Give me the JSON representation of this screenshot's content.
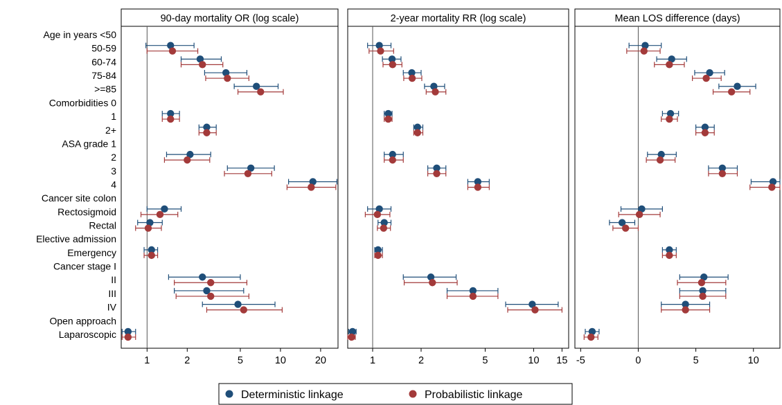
{
  "chart_data": {
    "type": "forest",
    "legend_position": "bottom",
    "series": [
      {
        "name": "Deterministic linkage",
        "color": "#1f4e79"
      },
      {
        "name": "Probabilistic linkage",
        "color": "#a33a3a"
      }
    ],
    "row_labels": [
      "Age in years <50",
      "50-59",
      "60-74",
      "75-84",
      ">=85",
      "Comorbidities 0",
      "1",
      "2+",
      "ASA grade 1",
      "2",
      "3",
      "4",
      "Cancer site colon",
      "Rectosigmoid",
      "Rectal",
      "Elective admission",
      "Emergency",
      "Cancer stage I",
      "II",
      "III",
      "IV",
      "Open approach",
      "Laparoscopic"
    ],
    "panels": [
      {
        "title": "90-day mortality OR (log scale)",
        "scale": "log",
        "reference_line": 1,
        "xlim": [
          0.64,
          27
        ],
        "ticks": [
          1,
          2,
          5,
          10,
          20
        ],
        "tick_labels": [
          "1",
          "2",
          "5",
          "10",
          "20"
        ],
        "rows": [
          null,
          [
            [
              1.5,
              0.98,
              2.25
            ],
            [
              1.55,
              1.0,
              2.4
            ]
          ],
          [
            [
              2.5,
              1.8,
              3.6
            ],
            [
              2.6,
              1.8,
              3.7
            ]
          ],
          [
            [
              3.9,
              2.7,
              5.6
            ],
            [
              4.0,
              2.75,
              5.8
            ]
          ],
          [
            [
              6.6,
              4.5,
              9.6
            ],
            [
              7.1,
              4.8,
              10.5
            ]
          ],
          null,
          [
            [
              1.5,
              1.3,
              1.75
            ],
            [
              1.5,
              1.3,
              1.75
            ]
          ],
          [
            [
              2.8,
              2.45,
              3.3
            ],
            [
              2.8,
              2.45,
              3.3
            ]
          ],
          null,
          [
            [
              2.1,
              1.4,
              3.0
            ],
            [
              2.0,
              1.35,
              2.95
            ]
          ],
          [
            [
              6.0,
              4.0,
              9.0
            ],
            [
              5.7,
              3.8,
              8.6
            ]
          ],
          [
            [
              17.5,
              11.5,
              26.5
            ],
            [
              17.0,
              11.2,
              26.0
            ]
          ],
          null,
          [
            [
              1.35,
              1.0,
              1.8
            ],
            [
              1.25,
              0.9,
              1.7
            ]
          ],
          [
            [
              1.05,
              0.85,
              1.3
            ],
            [
              1.02,
              0.82,
              1.28
            ]
          ],
          null,
          [
            [
              1.08,
              0.95,
              1.2
            ],
            [
              1.08,
              0.95,
              1.2
            ]
          ],
          null,
          [
            [
              2.6,
              1.45,
              5.0
            ],
            [
              3.0,
              1.6,
              5.6
            ]
          ],
          [
            [
              2.8,
              1.6,
              5.3
            ],
            [
              3.0,
              1.65,
              5.8
            ]
          ],
          [
            [
              4.8,
              2.6,
              9.1
            ],
            [
              5.3,
              2.8,
              10.3
            ]
          ],
          null,
          [
            [
              0.72,
              0.65,
              0.82
            ],
            [
              0.72,
              0.65,
              0.82
            ]
          ]
        ]
      },
      {
        "title": "2-year mortality RR (log scale)",
        "scale": "log",
        "reference_line": 1,
        "xlim": [
          0.7,
          16.5
        ],
        "ticks": [
          1,
          2,
          5,
          10,
          15
        ],
        "tick_labels": [
          "1",
          "2",
          "5",
          "10",
          "15"
        ],
        "rows": [
          null,
          [
            [
              1.1,
              0.93,
              1.3
            ],
            [
              1.12,
              0.95,
              1.35
            ]
          ],
          [
            [
              1.32,
              1.15,
              1.5
            ],
            [
              1.33,
              1.16,
              1.52
            ]
          ],
          [
            [
              1.75,
              1.55,
              2.0
            ],
            [
              1.76,
              1.56,
              2.02
            ]
          ],
          [
            [
              2.4,
              2.1,
              2.8
            ],
            [
              2.45,
              2.15,
              2.85
            ]
          ],
          null,
          [
            [
              1.25,
              1.18,
              1.32
            ],
            [
              1.25,
              1.18,
              1.32
            ]
          ],
          [
            [
              1.9,
              1.8,
              2.05
            ],
            [
              1.9,
              1.8,
              2.05
            ]
          ],
          null,
          [
            [
              1.33,
              1.18,
              1.55
            ],
            [
              1.33,
              1.18,
              1.55
            ]
          ],
          [
            [
              2.5,
              2.2,
              2.85
            ],
            [
              2.5,
              2.2,
              2.85
            ]
          ],
          [
            [
              4.5,
              3.9,
              5.3
            ],
            [
              4.5,
              3.9,
              5.3
            ]
          ],
          null,
          [
            [
              1.1,
              0.93,
              1.3
            ],
            [
              1.07,
              0.9,
              1.28
            ]
          ],
          [
            [
              1.18,
              1.08,
              1.3
            ],
            [
              1.17,
              1.07,
              1.29
            ]
          ],
          null,
          [
            [
              1.08,
              1.03,
              1.15
            ],
            [
              1.08,
              1.03,
              1.15
            ]
          ],
          null,
          [
            [
              2.3,
              1.55,
              3.3
            ],
            [
              2.35,
              1.57,
              3.35
            ]
          ],
          [
            [
              4.2,
              2.9,
              6.0
            ],
            [
              4.2,
              2.9,
              6.0
            ]
          ],
          [
            [
              9.8,
              6.7,
              14.2
            ],
            [
              10.2,
              6.9,
              15.0
            ]
          ],
          null,
          [
            [
              0.75,
              0.71,
              0.79
            ],
            [
              0.74,
              0.7,
              0.78
            ]
          ]
        ]
      },
      {
        "title": "Mean LOS difference (days)",
        "scale": "linear",
        "reference_line": 0,
        "xlim": [
          -5.5,
          12.3
        ],
        "ticks": [
          -5,
          0,
          5,
          10
        ],
        "tick_labels": [
          "-5",
          "0",
          "5",
          "10"
        ],
        "rows": [
          null,
          [
            [
              0.6,
              -0.8,
              2.0
            ],
            [
              0.5,
              -1.0,
              1.9
            ]
          ],
          [
            [
              2.9,
              1.6,
              4.2
            ],
            [
              2.7,
              1.4,
              4.0
            ]
          ],
          [
            [
              6.2,
              4.9,
              7.5
            ],
            [
              5.9,
              4.7,
              7.2
            ]
          ],
          [
            [
              8.6,
              7.0,
              10.2
            ],
            [
              8.1,
              6.5,
              9.7
            ]
          ],
          null,
          [
            [
              2.8,
              2.1,
              3.5
            ],
            [
              2.7,
              2.0,
              3.4
            ]
          ],
          [
            [
              5.8,
              5.0,
              6.6
            ],
            [
              5.8,
              5.0,
              6.6
            ]
          ],
          null,
          [
            [
              2.0,
              0.8,
              3.3
            ],
            [
              1.9,
              0.7,
              3.2
            ]
          ],
          [
            [
              7.3,
              6.1,
              8.6
            ],
            [
              7.3,
              6.1,
              8.6
            ]
          ],
          [
            [
              11.7,
              9.8,
              13.5
            ],
            [
              11.6,
              9.7,
              13.4
            ]
          ],
          null,
          [
            [
              0.3,
              -1.5,
              2.1
            ],
            [
              0.1,
              -1.7,
              1.9
            ]
          ],
          [
            [
              -1.4,
              -2.5,
              -0.3
            ],
            [
              -1.1,
              -2.2,
              0.0
            ]
          ],
          null,
          [
            [
              2.7,
              2.1,
              3.3
            ],
            [
              2.7,
              2.1,
              3.3
            ]
          ],
          null,
          [
            [
              5.7,
              3.6,
              7.8
            ],
            [
              5.5,
              3.4,
              7.6
            ]
          ],
          [
            [
              5.6,
              3.6,
              7.6
            ],
            [
              5.6,
              3.6,
              7.6
            ]
          ],
          [
            [
              4.1,
              2.0,
              6.2
            ],
            [
              4.1,
              2.0,
              6.2
            ]
          ],
          null,
          [
            [
              -4.0,
              -4.6,
              -3.4
            ],
            [
              -4.1,
              -4.7,
              -3.5
            ]
          ]
        ]
      }
    ]
  }
}
